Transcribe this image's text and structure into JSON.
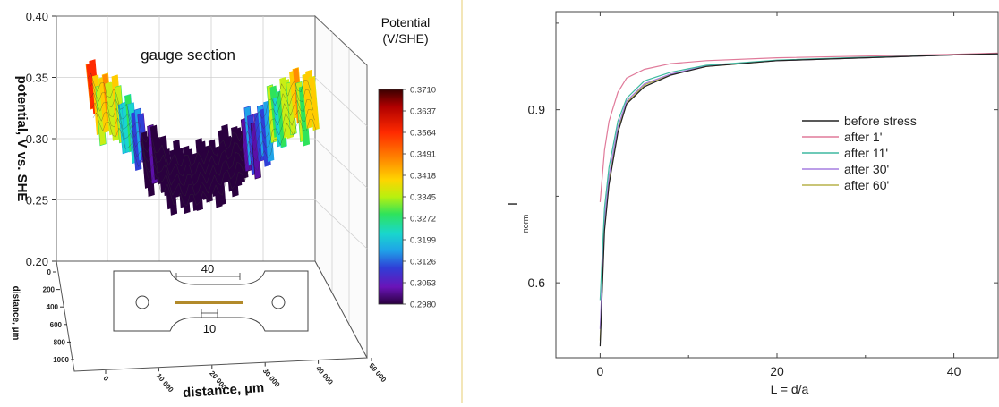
{
  "colors": {
    "before_stress": "#222222",
    "after_1": "#e07a9a",
    "after_11": "#3fb9a0",
    "after_30": "#a57ee0",
    "after_60": "#b7b24a",
    "colormap": [
      "#2a003f",
      "#5b0fa8",
      "#2f3fd7",
      "#1fa3e8",
      "#19d7cc",
      "#2fe35b",
      "#c9ee15",
      "#ffcc00",
      "#ff8c00",
      "#ff2a00",
      "#c40000",
      "#5a0000"
    ]
  },
  "chart_data": [
    {
      "type": "surface3d",
      "title": "gauge section",
      "zlabel": "potential, V vs. SHE",
      "xlabel": "distance, µm",
      "ylabel": "distance, µm",
      "z_ticks": [
        "0.20",
        "0.25",
        "0.30",
        "0.35",
        "0.40"
      ],
      "x_ticks": [
        "0",
        "10 000",
        "20 000",
        "30 000",
        "40 000",
        "50 000"
      ],
      "y_ticks": [
        "0",
        "200",
        "400",
        "600",
        "800",
        "1000"
      ],
      "colorbar": {
        "title_line1": "Potential",
        "title_line2": "(V/SHE)",
        "ticks": [
          "0.3710",
          "0.3637",
          "0.3564",
          "0.3491",
          "0.3418",
          "0.3345",
          "0.3272",
          "0.3199",
          "0.3126",
          "0.3053",
          "0.2980"
        ]
      },
      "profile": {
        "x": [
          0,
          5000,
          10000,
          15000,
          20000,
          25000,
          30000,
          35000,
          40000
        ],
        "potential": [
          0.352,
          0.337,
          0.305,
          0.283,
          0.284,
          0.296,
          0.313,
          0.339,
          0.343
        ]
      },
      "inset": {
        "gauge_length_label": "40",
        "strip_width_label": "10"
      }
    },
    {
      "type": "line",
      "xlabel": "L = d/a",
      "ylabel_main": "I",
      "ylabel_sub": "norm",
      "x_ticks": [
        "0",
        "20",
        "40"
      ],
      "y_ticks": [
        "0.6",
        "0.9"
      ],
      "xlim": [
        -5,
        45
      ],
      "ylim": [
        0.47,
        1.07
      ],
      "series": [
        {
          "name": "before stress",
          "x": [
            0,
            0.5,
            1,
            2,
            3,
            5,
            8,
            12,
            20,
            30,
            40,
            45
          ],
          "y": [
            0.49,
            0.69,
            0.77,
            0.86,
            0.91,
            0.94,
            0.96,
            0.975,
            0.985,
            0.99,
            0.995,
            0.997
          ]
        },
        {
          "name": "after 1'",
          "x": [
            0,
            0.5,
            1,
            2,
            3,
            5,
            8,
            12,
            20,
            30,
            40,
            45
          ],
          "y": [
            0.74,
            0.83,
            0.88,
            0.93,
            0.955,
            0.97,
            0.98,
            0.985,
            0.99,
            0.993,
            0.996,
            0.998
          ]
        },
        {
          "name": "after 11'",
          "x": [
            0,
            0.5,
            1,
            2,
            3,
            5,
            8,
            12,
            20,
            30,
            40,
            45
          ],
          "y": [
            0.57,
            0.73,
            0.8,
            0.88,
            0.92,
            0.95,
            0.965,
            0.977,
            0.986,
            0.991,
            0.995,
            0.997
          ]
        },
        {
          "name": "after 30'",
          "x": [
            0,
            0.5,
            1,
            2,
            3,
            5,
            8,
            12,
            20,
            30,
            40,
            45
          ],
          "y": [
            0.52,
            0.71,
            0.785,
            0.87,
            0.915,
            0.945,
            0.962,
            0.976,
            0.985,
            0.99,
            0.995,
            0.997
          ]
        },
        {
          "name": "after 60'",
          "x": [
            0,
            0.5,
            1,
            2,
            3,
            5,
            8,
            12,
            20,
            30,
            40,
            45
          ],
          "y": [
            0.5,
            0.7,
            0.78,
            0.865,
            0.912,
            0.943,
            0.961,
            0.975,
            0.985,
            0.99,
            0.995,
            0.997
          ]
        }
      ]
    }
  ]
}
